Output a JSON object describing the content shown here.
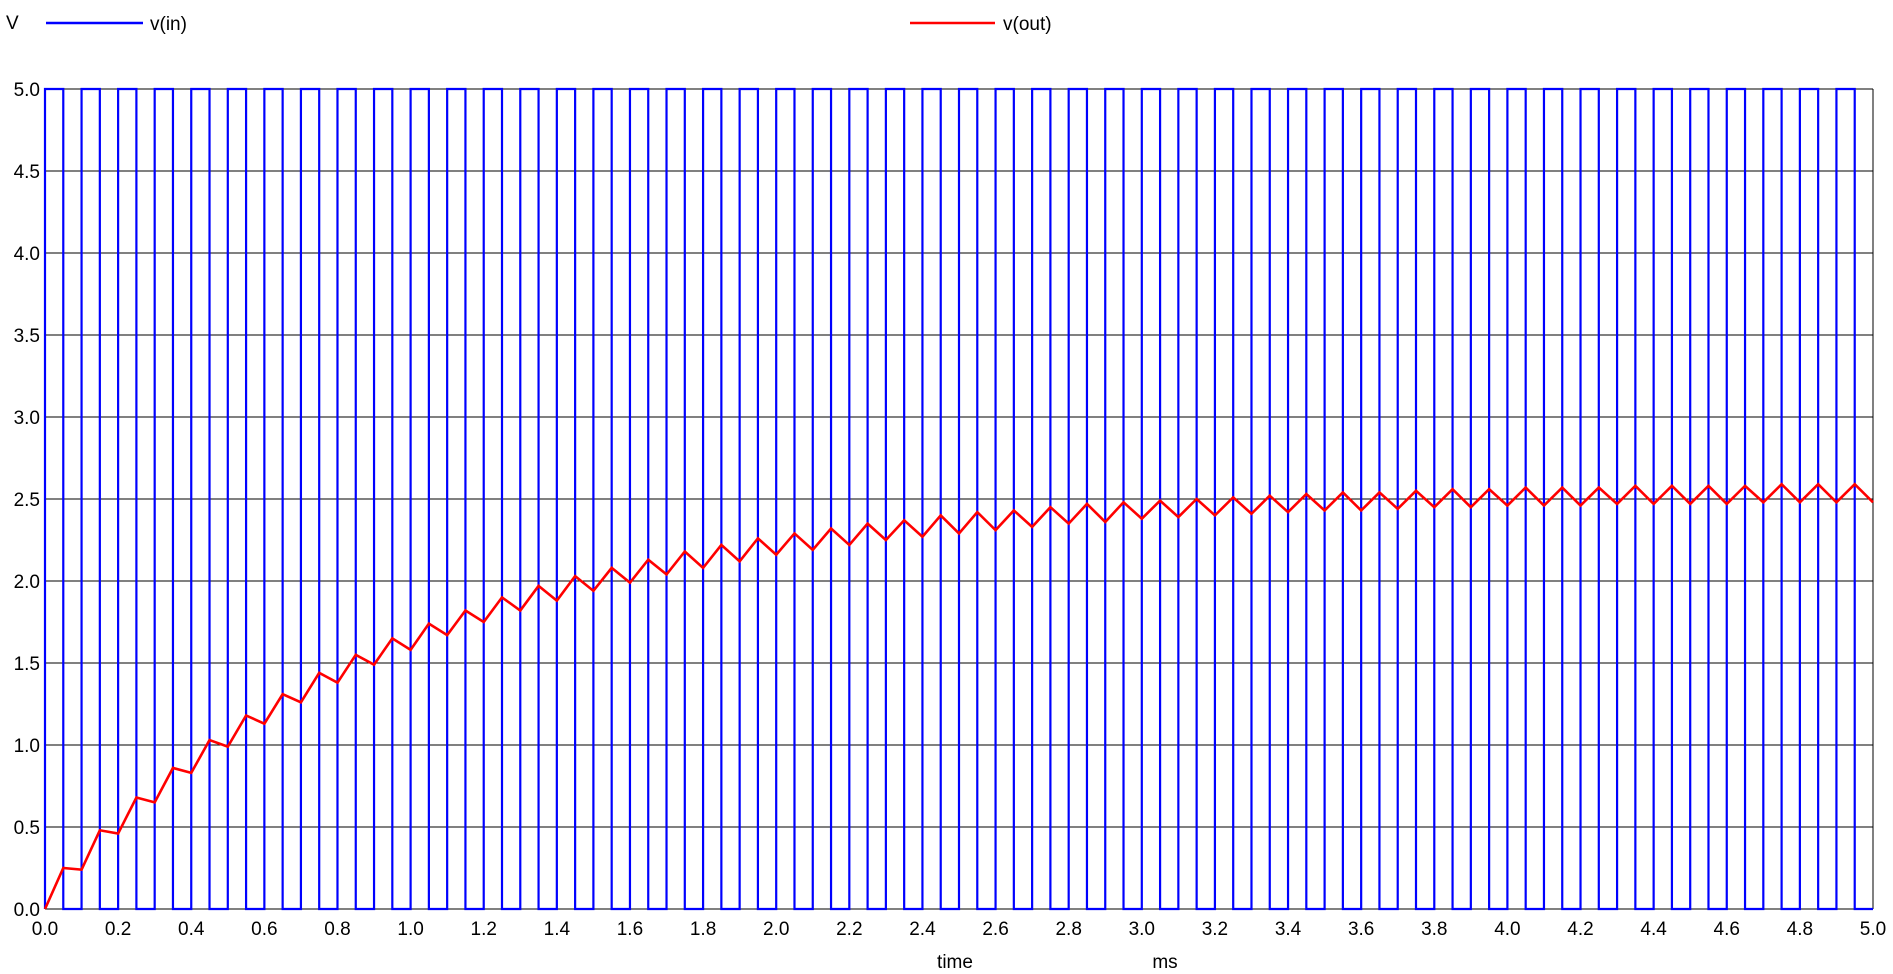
{
  "chart_data": {
    "type": "line",
    "yunit": "V",
    "xlabel": "time",
    "xunit": "ms",
    "xlim": [
      0.0,
      5.0
    ],
    "ylim": [
      0.0,
      5.0
    ],
    "xticks": [
      "0.0",
      "0.2",
      "0.4",
      "0.6",
      "0.8",
      "1.0",
      "1.2",
      "1.4",
      "1.6",
      "1.8",
      "2.0",
      "2.2",
      "2.4",
      "2.6",
      "2.8",
      "3.0",
      "3.2",
      "3.4",
      "3.6",
      "3.8",
      "4.0",
      "4.2",
      "4.4",
      "4.6",
      "4.8",
      "5.0"
    ],
    "yticks": [
      "0.0",
      "0.5",
      "1.0",
      "1.5",
      "2.0",
      "2.5",
      "3.0",
      "3.5",
      "4.0",
      "4.5",
      "5.0"
    ],
    "grid": true,
    "legend_placement": "top",
    "series": [
      {
        "name": "v(in)",
        "color": "#0000ff",
        "kind": "square-wave",
        "period_ms": 0.1,
        "high_ms": 0.05,
        "low_value": 0.0,
        "high_value": 5.0
      },
      {
        "name": "v(out)",
        "color": "#ff0000",
        "kind": "rc-charging",
        "x": [
          0.0,
          0.05,
          0.1,
          0.15,
          0.2,
          0.25,
          0.3,
          0.35,
          0.4,
          0.45,
          0.5,
          0.55,
          0.6,
          0.65,
          0.7,
          0.75,
          0.8,
          0.85,
          0.9,
          0.95,
          1.0,
          1.05,
          1.1,
          1.15,
          1.2,
          1.25,
          1.3,
          1.35,
          1.4,
          1.45,
          1.5,
          1.55,
          1.6,
          1.65,
          1.7,
          1.75,
          1.8,
          1.85,
          1.9,
          1.95,
          2.0,
          2.05,
          2.1,
          2.15,
          2.2,
          2.25,
          2.3,
          2.35,
          2.4,
          2.45,
          2.5,
          2.55,
          2.6,
          2.65,
          2.7,
          2.75,
          2.8,
          2.85,
          2.9,
          2.95,
          3.0,
          3.05,
          3.1,
          3.15,
          3.2,
          3.25,
          3.3,
          3.35,
          3.4,
          3.45,
          3.5,
          3.55,
          3.6,
          3.65,
          3.7,
          3.75,
          3.8,
          3.85,
          3.9,
          3.95,
          4.0,
          4.05,
          4.1,
          4.15,
          4.2,
          4.25,
          4.3,
          4.35,
          4.4,
          4.45,
          4.5,
          4.55,
          4.6,
          4.65,
          4.7,
          4.75,
          4.8,
          4.85,
          4.9,
          4.95,
          5.0
        ],
        "y": [
          0.0,
          0.25,
          0.24,
          0.48,
          0.46,
          0.68,
          0.65,
          0.86,
          0.83,
          1.03,
          0.99,
          1.18,
          1.13,
          1.31,
          1.26,
          1.44,
          1.38,
          1.55,
          1.49,
          1.65,
          1.58,
          1.74,
          1.67,
          1.82,
          1.75,
          1.9,
          1.82,
          1.97,
          1.88,
          2.03,
          1.94,
          2.08,
          1.99,
          2.13,
          2.04,
          2.18,
          2.08,
          2.22,
          2.12,
          2.26,
          2.16,
          2.29,
          2.19,
          2.32,
          2.22,
          2.35,
          2.25,
          2.37,
          2.27,
          2.4,
          2.29,
          2.42,
          2.31,
          2.43,
          2.33,
          2.45,
          2.35,
          2.47,
          2.36,
          2.48,
          2.38,
          2.49,
          2.39,
          2.5,
          2.4,
          2.51,
          2.41,
          2.52,
          2.42,
          2.53,
          2.43,
          2.54,
          2.43,
          2.54,
          2.44,
          2.55,
          2.45,
          2.56,
          2.45,
          2.56,
          2.46,
          2.57,
          2.46,
          2.57,
          2.46,
          2.57,
          2.47,
          2.58,
          2.47,
          2.58,
          2.47,
          2.58,
          2.47,
          2.58,
          2.48,
          2.59,
          2.48,
          2.59,
          2.48,
          2.59,
          2.48
        ]
      }
    ]
  }
}
